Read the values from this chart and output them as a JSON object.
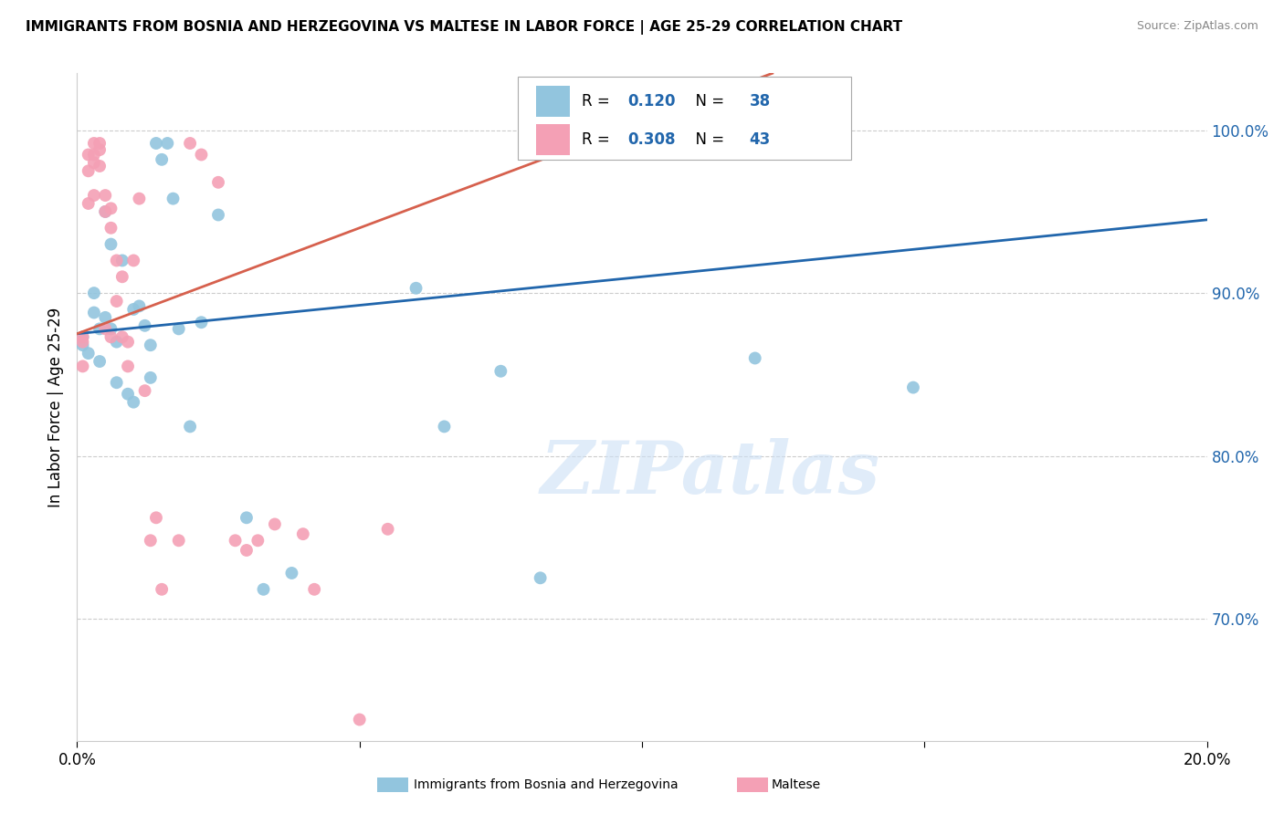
{
  "title": "IMMIGRANTS FROM BOSNIA AND HERZEGOVINA VS MALTESE IN LABOR FORCE | AGE 25-29 CORRELATION CHART",
  "source": "Source: ZipAtlas.com",
  "ylabel": "In Labor Force | Age 25-29",
  "ytick_labels": [
    "100.0%",
    "90.0%",
    "80.0%",
    "70.0%"
  ],
  "ytick_values": [
    1.0,
    0.9,
    0.8,
    0.7
  ],
  "xlim": [
    0.0,
    0.2
  ],
  "ylim": [
    0.625,
    1.035
  ],
  "blue_color": "#92c5de",
  "pink_color": "#f4a0b5",
  "blue_line_color": "#2166ac",
  "pink_line_color": "#d6604d",
  "legend_R_blue": "0.120",
  "legend_N_blue": "38",
  "legend_R_pink": "0.308",
  "legend_N_pink": "43",
  "blue_scatter_x": [
    0.001,
    0.001,
    0.002,
    0.003,
    0.003,
    0.004,
    0.004,
    0.005,
    0.005,
    0.006,
    0.006,
    0.007,
    0.007,
    0.008,
    0.009,
    0.01,
    0.01,
    0.011,
    0.012,
    0.013,
    0.013,
    0.014,
    0.015,
    0.016,
    0.017,
    0.018,
    0.02,
    0.022,
    0.025,
    0.03,
    0.033,
    0.038,
    0.06,
    0.065,
    0.075,
    0.082,
    0.12,
    0.148
  ],
  "blue_scatter_y": [
    0.873,
    0.868,
    0.863,
    0.9,
    0.888,
    0.878,
    0.858,
    0.95,
    0.885,
    0.93,
    0.878,
    0.87,
    0.845,
    0.92,
    0.838,
    0.89,
    0.833,
    0.892,
    0.88,
    0.868,
    0.848,
    0.992,
    0.982,
    0.992,
    0.958,
    0.878,
    0.818,
    0.882,
    0.948,
    0.762,
    0.718,
    0.728,
    0.903,
    0.818,
    0.852,
    0.725,
    0.86,
    0.842
  ],
  "pink_scatter_x": [
    0.001,
    0.001,
    0.001,
    0.002,
    0.002,
    0.002,
    0.003,
    0.003,
    0.003,
    0.003,
    0.004,
    0.004,
    0.004,
    0.005,
    0.005,
    0.005,
    0.006,
    0.006,
    0.006,
    0.007,
    0.007,
    0.008,
    0.008,
    0.009,
    0.009,
    0.01,
    0.011,
    0.012,
    0.013,
    0.014,
    0.015,
    0.018,
    0.02,
    0.022,
    0.025,
    0.028,
    0.03,
    0.032,
    0.035,
    0.04,
    0.042,
    0.05,
    0.055
  ],
  "pink_scatter_y": [
    0.873,
    0.87,
    0.855,
    0.985,
    0.975,
    0.955,
    0.992,
    0.985,
    0.98,
    0.96,
    0.992,
    0.988,
    0.978,
    0.96,
    0.95,
    0.878,
    0.952,
    0.94,
    0.873,
    0.92,
    0.895,
    0.91,
    0.873,
    0.87,
    0.855,
    0.92,
    0.958,
    0.84,
    0.748,
    0.762,
    0.718,
    0.748,
    0.992,
    0.985,
    0.968,
    0.748,
    0.742,
    0.748,
    0.758,
    0.752,
    0.718,
    0.638,
    0.755
  ],
  "watermark_text": "ZIPatlas",
  "background_color": "#ffffff",
  "grid_color": "#cccccc"
}
